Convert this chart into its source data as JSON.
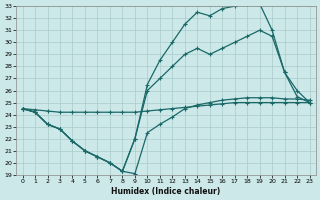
{
  "xlabel": "Humidex (Indice chaleur)",
  "bg_color": "#cce8e8",
  "grid_color": "#aacccc",
  "line_color": "#1a6868",
  "xlim": [
    -0.5,
    23.5
  ],
  "ylim": [
    19,
    33
  ],
  "xticks": [
    0,
    1,
    2,
    3,
    4,
    5,
    6,
    7,
    8,
    9,
    10,
    11,
    12,
    13,
    14,
    15,
    16,
    17,
    18,
    19,
    20,
    21,
    22,
    23
  ],
  "yticks": [
    19,
    20,
    21,
    22,
    23,
    24,
    25,
    26,
    27,
    28,
    29,
    30,
    31,
    32,
    33
  ],
  "line1_x": [
    0,
    1,
    2,
    3,
    4,
    5,
    6,
    7,
    8,
    9,
    10,
    11,
    12,
    13,
    14,
    15,
    16,
    17,
    18,
    19,
    20,
    21,
    22,
    23
  ],
  "line1_y": [
    24.5,
    24.4,
    24.3,
    24.2,
    24.2,
    24.2,
    24.2,
    24.2,
    24.2,
    24.2,
    24.3,
    24.4,
    24.5,
    24.6,
    24.7,
    24.8,
    24.9,
    25.0,
    25.0,
    25.0,
    25.0,
    25.0,
    25.0,
    25.0
  ],
  "line2_x": [
    0,
    1,
    2,
    3,
    4,
    5,
    6,
    7,
    8,
    9,
    10,
    11,
    12,
    13,
    14,
    15,
    16,
    17,
    18,
    19,
    20,
    21,
    22,
    23
  ],
  "line2_y": [
    24.5,
    24.2,
    23.2,
    22.8,
    21.8,
    21.0,
    20.5,
    20.0,
    19.3,
    19.1,
    22.5,
    23.2,
    23.8,
    24.5,
    24.8,
    25.0,
    25.2,
    25.3,
    25.4,
    25.4,
    25.4,
    25.3,
    25.3,
    25.2
  ],
  "line3_x": [
    0,
    1,
    2,
    3,
    4,
    5,
    6,
    7,
    8,
    9,
    10,
    11,
    12,
    13,
    14,
    15,
    16,
    17,
    18,
    19,
    20,
    21,
    22,
    23
  ],
  "line3_y": [
    24.5,
    24.2,
    23.2,
    22.8,
    21.8,
    21.0,
    20.5,
    20.0,
    19.3,
    22.0,
    26.5,
    28.5,
    30.0,
    31.5,
    32.5,
    32.2,
    32.8,
    33.0,
    33.2,
    33.2,
    31.0,
    27.5,
    26.0,
    25.0
  ],
  "line4_x": [
    0,
    1,
    2,
    3,
    4,
    5,
    6,
    7,
    8,
    9,
    10,
    11,
    12,
    13,
    14,
    15,
    16,
    17,
    18,
    19,
    20,
    21,
    22,
    23
  ],
  "line4_y": [
    24.5,
    24.2,
    23.2,
    22.8,
    21.8,
    21.0,
    20.5,
    20.0,
    19.3,
    22.0,
    26.0,
    27.0,
    28.0,
    29.0,
    29.5,
    29.0,
    29.5,
    30.0,
    30.5,
    31.0,
    30.5,
    27.5,
    25.5,
    25.0
  ]
}
